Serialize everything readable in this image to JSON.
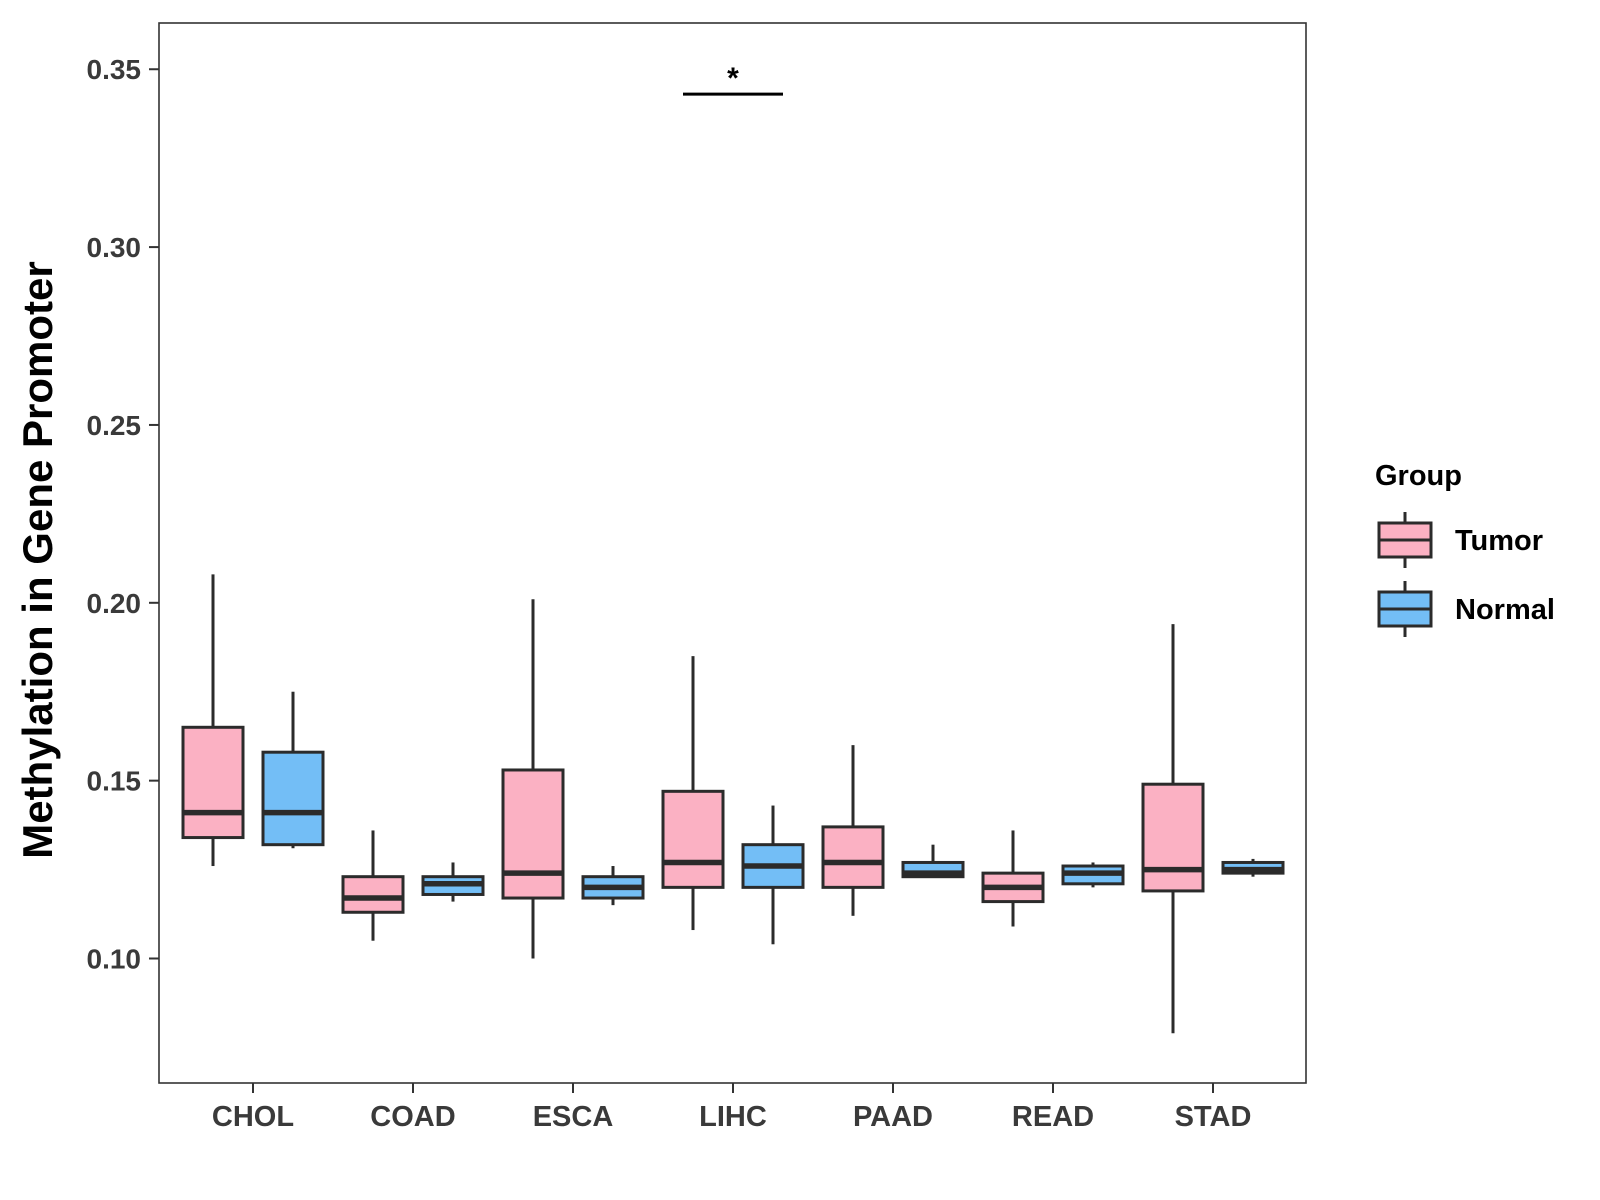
{
  "chart_data": {
    "type": "boxplot",
    "title": "",
    "xlabel": "",
    "ylabel": "Methylation in Gene Promoter",
    "ylim": [
      0.065,
      0.363
    ],
    "yticks": [
      0.1,
      0.15,
      0.2,
      0.25,
      0.3,
      0.35
    ],
    "ytick_labels": [
      "0.10",
      "0.15",
      "0.20",
      "0.25",
      "0.30",
      "0.35"
    ],
    "categories": [
      "CHOL",
      "COAD",
      "ESCA",
      "LIHC",
      "PAAD",
      "READ",
      "STAD"
    ],
    "grid": false,
    "legend": {
      "title": "Group",
      "position": "right",
      "entries": [
        "Tumor",
        "Normal"
      ]
    },
    "colors": {
      "Tumor": "#FBB1C3",
      "Normal": "#73BEF6",
      "outline": "#2b2b2b"
    },
    "series": [
      {
        "name": "Tumor",
        "boxes": [
          {
            "category": "CHOL",
            "min": 0.126,
            "q1": 0.134,
            "median": 0.141,
            "q3": 0.165,
            "max": 0.208
          },
          {
            "category": "COAD",
            "min": 0.105,
            "q1": 0.113,
            "median": 0.117,
            "q3": 0.123,
            "max": 0.136
          },
          {
            "category": "ESCA",
            "min": 0.1,
            "q1": 0.117,
            "median": 0.124,
            "q3": 0.153,
            "max": 0.201
          },
          {
            "category": "LIHC",
            "min": 0.108,
            "q1": 0.12,
            "median": 0.127,
            "q3": 0.147,
            "max": 0.185
          },
          {
            "category": "PAAD",
            "min": 0.112,
            "q1": 0.12,
            "median": 0.127,
            "q3": 0.137,
            "max": 0.16
          },
          {
            "category": "READ",
            "min": 0.109,
            "q1": 0.116,
            "median": 0.12,
            "q3": 0.124,
            "max": 0.136
          },
          {
            "category": "STAD",
            "min": 0.079,
            "q1": 0.119,
            "median": 0.125,
            "q3": 0.149,
            "max": 0.194
          }
        ]
      },
      {
        "name": "Normal",
        "boxes": [
          {
            "category": "CHOL",
            "min": 0.131,
            "q1": 0.132,
            "median": 0.141,
            "q3": 0.158,
            "max": 0.175
          },
          {
            "category": "COAD",
            "min": 0.116,
            "q1": 0.118,
            "median": 0.121,
            "q3": 0.123,
            "max": 0.127
          },
          {
            "category": "ESCA",
            "min": 0.115,
            "q1": 0.117,
            "median": 0.12,
            "q3": 0.123,
            "max": 0.126
          },
          {
            "category": "LIHC",
            "min": 0.104,
            "q1": 0.12,
            "median": 0.126,
            "q3": 0.132,
            "max": 0.143
          },
          {
            "category": "PAAD",
            "min": 0.123,
            "q1": 0.123,
            "median": 0.124,
            "q3": 0.127,
            "max": 0.132
          },
          {
            "category": "READ",
            "min": 0.12,
            "q1": 0.121,
            "median": 0.124,
            "q3": 0.126,
            "max": 0.127
          },
          {
            "category": "STAD",
            "min": 0.123,
            "q1": 0.124,
            "median": 0.125,
            "q3": 0.127,
            "max": 0.128
          }
        ]
      }
    ],
    "annotations": [
      {
        "category": "LIHC",
        "text": "*",
        "y": 0.343
      }
    ]
  }
}
